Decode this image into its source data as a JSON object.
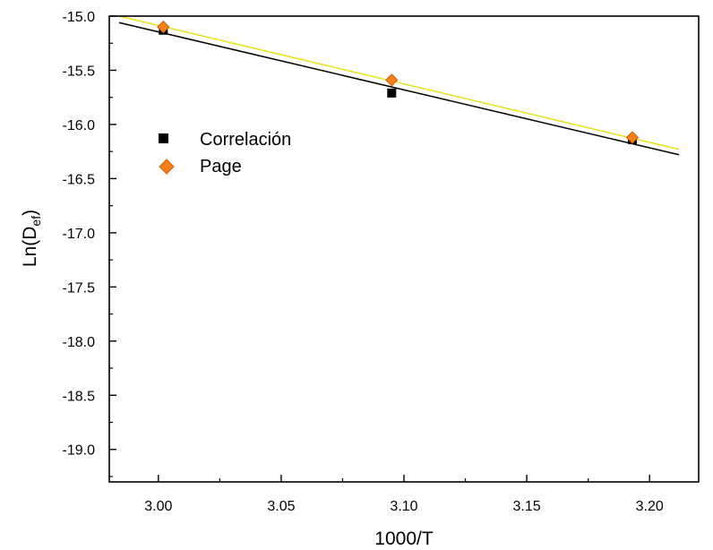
{
  "chart_data": {
    "type": "scatter",
    "xlabel": "1000/T",
    "ylabel": {
      "main": "Ln(D",
      "sub": "ef",
      "close": ")"
    },
    "xlim": [
      2.98,
      3.22
    ],
    "ylim": [
      -19.3,
      -15.0
    ],
    "x_ticks": [
      "3.00",
      "3.05",
      "3.10",
      "3.15",
      "3.20"
    ],
    "x_tick_values": [
      3.0,
      3.05,
      3.1,
      3.15,
      3.2
    ],
    "y_ticks": [
      "-15.0",
      "-15.5",
      "-16.0",
      "-16.5",
      "-17.0",
      "-17.5",
      "-18.0",
      "-18.5",
      "-19.0"
    ],
    "y_tick_values": [
      -15.0,
      -15.5,
      -16.0,
      -16.5,
      -17.0,
      -17.5,
      -18.0,
      -18.5,
      -19.0
    ],
    "series": [
      {
        "name": "Correlación",
        "marker": "square",
        "color": "#000000",
        "x": [
          3.002,
          3.095,
          3.193
        ],
        "y": [
          -15.13,
          -15.71,
          -16.14
        ],
        "fit_line": {
          "color": "#000000",
          "x": [
            2.984,
            3.212
          ],
          "y": [
            -15.06,
            -16.28
          ]
        }
      },
      {
        "name": "Page",
        "marker": "diamond",
        "color": "#f07f1c",
        "x": [
          3.002,
          3.095,
          3.193
        ],
        "y": [
          -15.1,
          -15.59,
          -16.12
        ],
        "fit_line": {
          "color": "#e6e01a",
          "x": [
            2.984,
            3.212
          ],
          "y": [
            -15.0,
            -16.23
          ]
        }
      }
    ],
    "legend": "upper-left"
  }
}
